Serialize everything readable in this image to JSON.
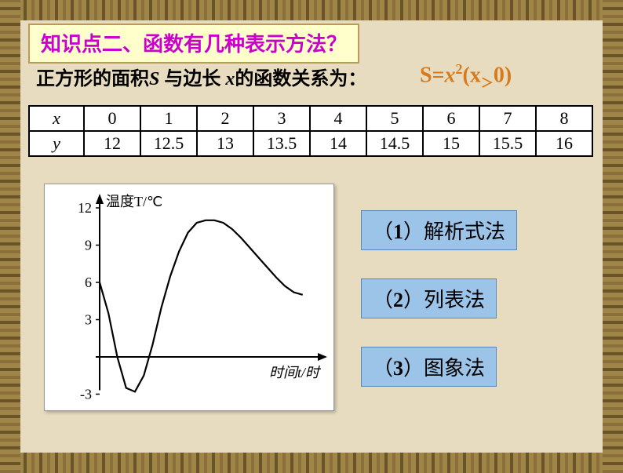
{
  "title": "知识点二、函数有几种表示方法？",
  "subtitle": {
    "prefix": "正方形的面积",
    "S": "S",
    "mid1": " 与边长 ",
    "x": "x",
    "suffix": "的函数关系为："
  },
  "formula": {
    "lhs": "S=",
    "var": "x",
    "exp": "2",
    "cond_open": "(x",
    "gt": "＞",
    "cond_close": "0)"
  },
  "table": {
    "row_labels": [
      "x",
      "y"
    ],
    "x": [
      "0",
      "1",
      "2",
      "3",
      "4",
      "5",
      "6",
      "7",
      "8"
    ],
    "y": [
      "12",
      "12.5",
      "13",
      "13.5",
      "14",
      "14.5",
      "15",
      "15.5",
      "16"
    ],
    "border_color": "#000000",
    "bg_color": "#ffffff",
    "fontsize": 22
  },
  "chart": {
    "type": "line",
    "ylabel": "温度T/℃",
    "xlabel": "时间t/时",
    "ylim": [
      -3,
      12
    ],
    "yticks": [
      -3,
      3,
      6,
      9,
      12
    ],
    "yticklabels": [
      "-3",
      "3",
      "6",
      "9",
      "12"
    ],
    "xlim": [
      0,
      24
    ],
    "line_color": "#000000",
    "line_width": 2.2,
    "background_color": "#ffffff",
    "axis_color": "#000000",
    "label_fontsize": 18,
    "curve_points": [
      [
        0,
        6
      ],
      [
        1,
        3.5
      ],
      [
        2,
        0
      ],
      [
        3,
        -2.5
      ],
      [
        4,
        -2.8
      ],
      [
        5,
        -1.5
      ],
      [
        6,
        1
      ],
      [
        7,
        4
      ],
      [
        8,
        6.5
      ],
      [
        9,
        8.5
      ],
      [
        10,
        10
      ],
      [
        11,
        10.8
      ],
      [
        12,
        11
      ],
      [
        13,
        11
      ],
      [
        14,
        10.8
      ],
      [
        15,
        10.3
      ],
      [
        16,
        9.6
      ],
      [
        17,
        8.8
      ],
      [
        18,
        8
      ],
      [
        19,
        7.2
      ],
      [
        20,
        6.4
      ],
      [
        21,
        5.7
      ],
      [
        22,
        5.2
      ],
      [
        23,
        5
      ]
    ]
  },
  "methods": {
    "items": [
      {
        "num": "1",
        "label": "解析式法"
      },
      {
        "num": "2",
        "label": "列表法"
      },
      {
        "num": "3",
        "label": "图象法"
      }
    ],
    "bg_color": "#9bc4e8",
    "border_color": "#5a8bb8",
    "fontsize": 26
  },
  "colors": {
    "page_bg": "#e8dcc0",
    "ornament": "#8b6f3a",
    "title_bg": "#ffffcc",
    "title_text": "#cc00cc",
    "formula_text": "#d97a1a"
  }
}
